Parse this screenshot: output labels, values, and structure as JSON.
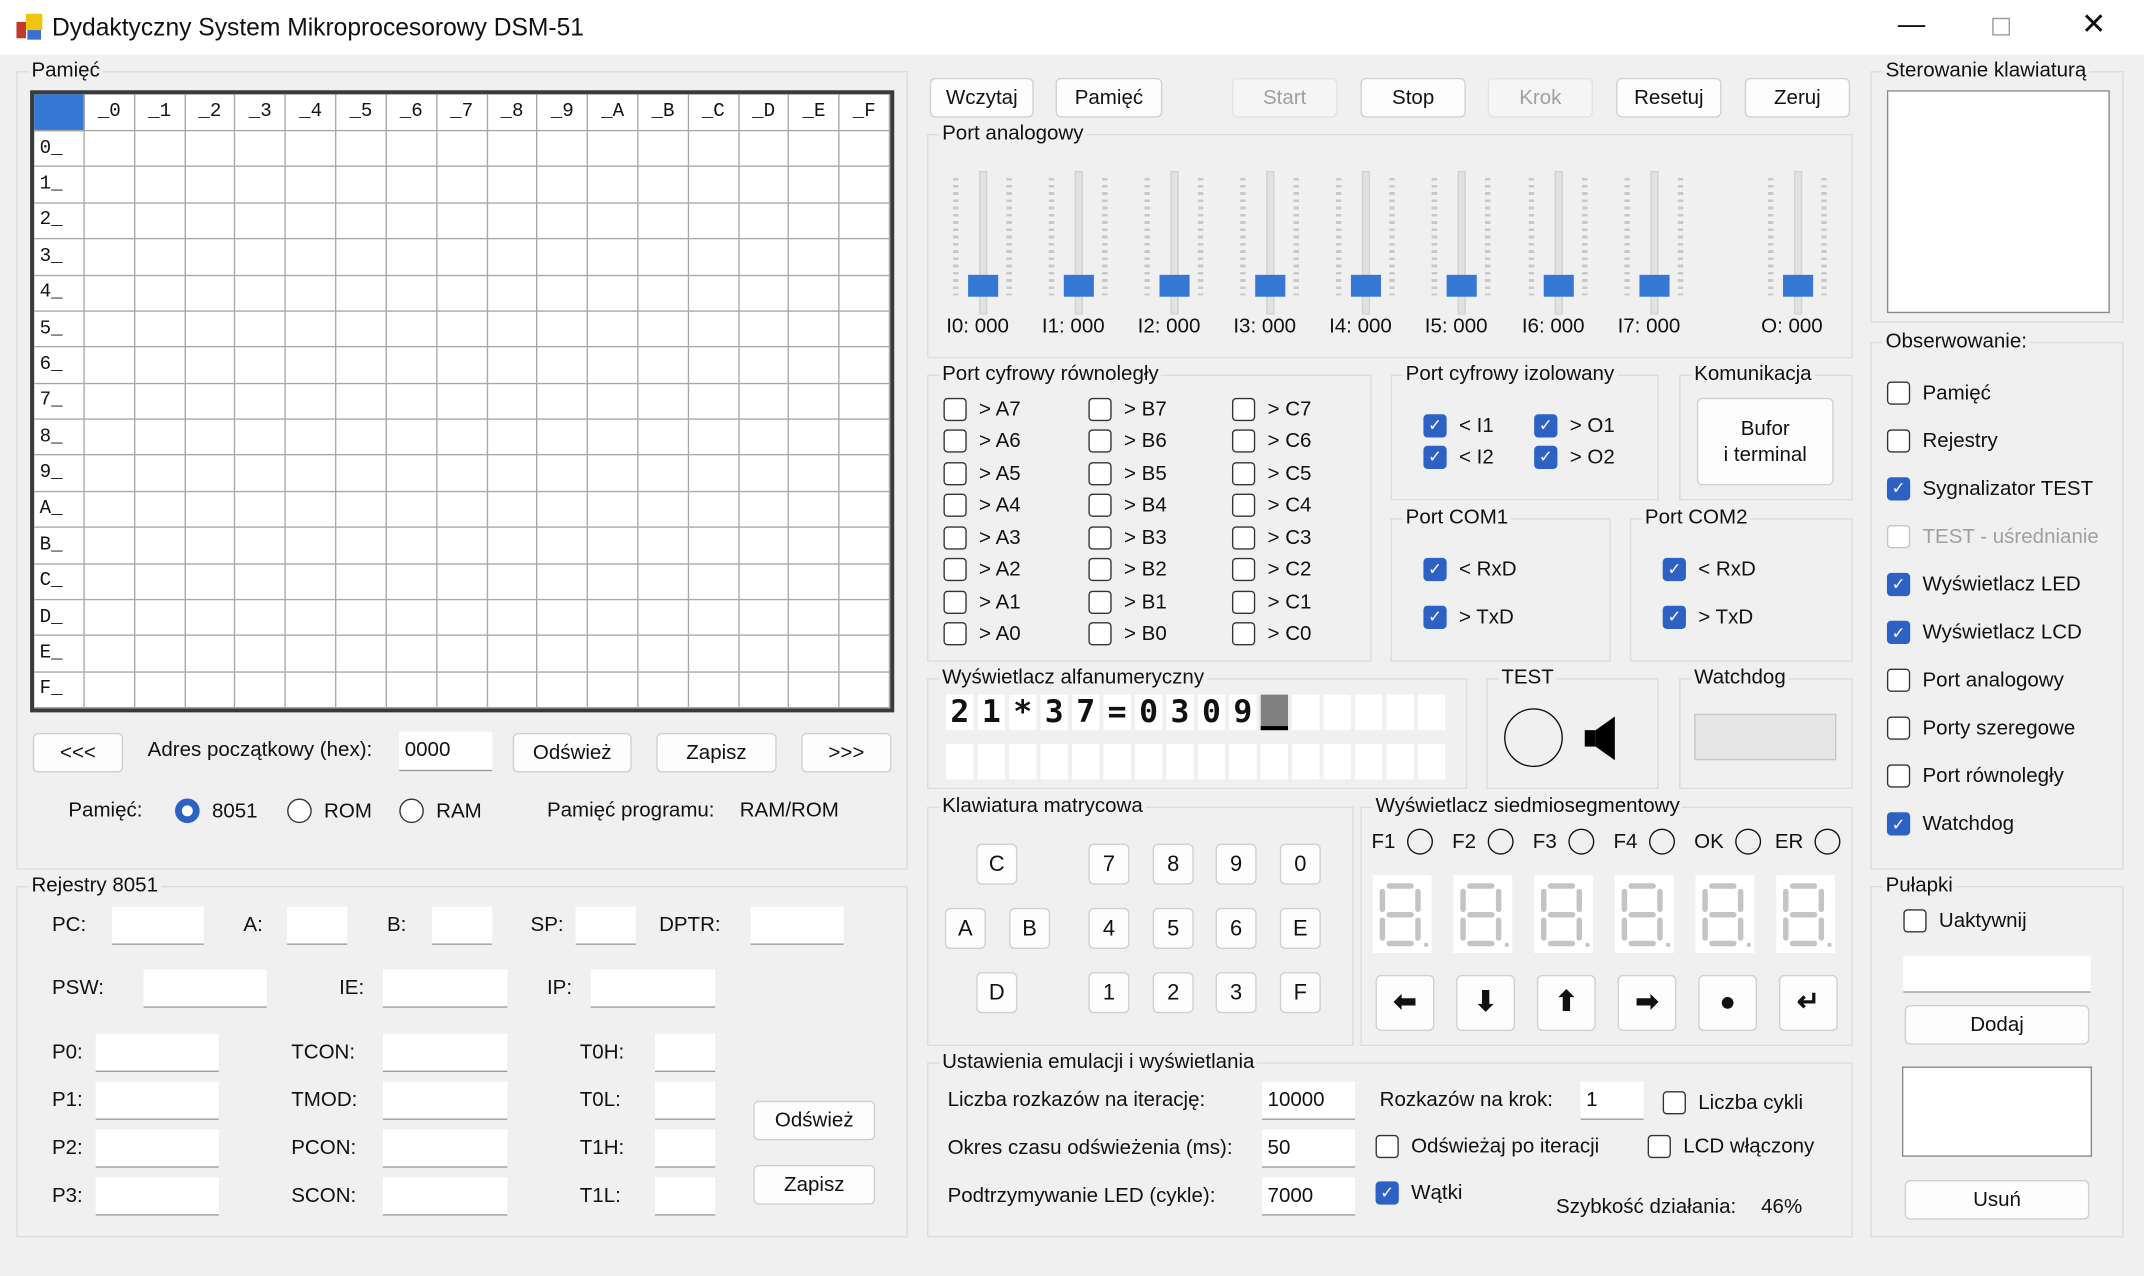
{
  "window": {
    "title": "Dydaktyczny System Mikroprocesorowy DSM-51",
    "controls": [
      {
        "icon": "minimize-icon"
      },
      {
        "icon": "maximize-icon"
      },
      {
        "icon": "close-icon"
      }
    ]
  },
  "memory": {
    "title": "Pamięć",
    "col_headers": [
      "_0",
      "_1",
      "_2",
      "_3",
      "_4",
      "_5",
      "_6",
      "_7",
      "_8",
      "_9",
      "_A",
      "_B",
      "_C",
      "_D",
      "_E",
      "_F"
    ],
    "row_headers": [
      "0_",
      "1_",
      "2_",
      "3_",
      "4_",
      "5_",
      "6_",
      "7_",
      "8_",
      "9_",
      "A_",
      "B_",
      "C_",
      "D_",
      "E_",
      "F_"
    ],
    "prev_label": "<<<",
    "addr_label": "Adres początkowy (hex):",
    "addr_value": "0000",
    "refresh_label": "Odśwież",
    "save_label": "Zapisz",
    "next_label": ">>>",
    "mem_label": "Pamięć:",
    "options": [
      {
        "label": "8051",
        "selected": true
      },
      {
        "label": "ROM",
        "selected": false
      },
      {
        "label": "RAM",
        "selected": false
      }
    ],
    "program_label": "Pamięć programu:",
    "program_value": "RAM/ROM"
  },
  "registers": {
    "title": "Rejestry 8051",
    "fields": [
      {
        "label": "PC:",
        "value": ""
      },
      {
        "label": "A:",
        "value": ""
      },
      {
        "label": "B:",
        "value": ""
      },
      {
        "label": "SP:",
        "value": ""
      },
      {
        "label": "DPTR:",
        "value": ""
      },
      {
        "label": "PSW:",
        "value": ""
      },
      {
        "label": "IE:",
        "value": ""
      },
      {
        "label": "IP:",
        "value": ""
      },
      {
        "label": "P0:",
        "value": ""
      },
      {
        "label": "TCON:",
        "value": ""
      },
      {
        "label": "T0H:",
        "value": ""
      },
      {
        "label": "P1:",
        "value": ""
      },
      {
        "label": "TMOD:",
        "value": ""
      },
      {
        "label": "T0L:",
        "value": ""
      },
      {
        "label": "P2:",
        "value": ""
      },
      {
        "label": "PCON:",
        "value": ""
      },
      {
        "label": "T1H:",
        "value": ""
      },
      {
        "label": "P3:",
        "value": ""
      },
      {
        "label": "SCON:",
        "value": ""
      },
      {
        "label": "T1L:",
        "value": ""
      }
    ],
    "refresh_label": "Odśwież",
    "save_label": "Zapisz"
  },
  "toolbar": {
    "buttons": [
      {
        "label": "Wczytaj",
        "enabled": true
      },
      {
        "label": "Pamięć",
        "enabled": true
      },
      {
        "label": "Start",
        "enabled": false
      },
      {
        "label": "Stop",
        "enabled": true
      },
      {
        "label": "Krok",
        "enabled": false
      },
      {
        "label": "Resetuj",
        "enabled": true
      },
      {
        "label": "Zeruj",
        "enabled": true
      }
    ]
  },
  "analog": {
    "title": "Port analogowy",
    "channels": [
      {
        "label": "I0: 000",
        "value": 0
      },
      {
        "label": "I1: 000",
        "value": 0
      },
      {
        "label": "I2: 000",
        "value": 0
      },
      {
        "label": "I3: 000",
        "value": 0
      },
      {
        "label": "I4: 000",
        "value": 0
      },
      {
        "label": "I5: 000",
        "value": 0
      },
      {
        "label": "I6: 000",
        "value": 0
      },
      {
        "label": "I7: 000",
        "value": 0
      },
      {
        "label": "O: 000",
        "value": 0
      }
    ]
  },
  "parallel": {
    "title": "Port cyfrowy równoległy",
    "items": [
      {
        "label": "> A7",
        "checked": false
      },
      {
        "label": "> A6",
        "checked": false
      },
      {
        "label": "> A5",
        "checked": false
      },
      {
        "label": "> A4",
        "checked": false
      },
      {
        "label": "> A3",
        "checked": false
      },
      {
        "label": "> A2",
        "checked": false
      },
      {
        "label": "> A1",
        "checked": false
      },
      {
        "label": "> A0",
        "checked": false
      },
      {
        "label": "> B7",
        "checked": false
      },
      {
        "label": "> B6",
        "checked": false
      },
      {
        "label": "> B5",
        "checked": false
      },
      {
        "label": "> B4",
        "checked": false
      },
      {
        "label": "> B3",
        "checked": false
      },
      {
        "label": "> B2",
        "checked": false
      },
      {
        "label": "> B1",
        "checked": false
      },
      {
        "label": "> B0",
        "checked": false
      },
      {
        "label": "> C7",
        "checked": false
      },
      {
        "label": "> C6",
        "checked": false
      },
      {
        "label": "> C5",
        "checked": false
      },
      {
        "label": "> C4",
        "checked": false
      },
      {
        "label": "> C3",
        "checked": false
      },
      {
        "label": "> C2",
        "checked": false
      },
      {
        "label": "> C1",
        "checked": false
      },
      {
        "label": "> C0",
        "checked": false
      }
    ]
  },
  "isolated": {
    "title": "Port cyfrowy izolowany",
    "items": [
      {
        "label": "< I1",
        "checked": true
      },
      {
        "label": "< I2",
        "checked": true
      },
      {
        "label": "> O1",
        "checked": true
      },
      {
        "label": "> O2",
        "checked": true
      }
    ]
  },
  "comm": {
    "title": "Komunikacja",
    "button_label": "Bufor\ni terminal"
  },
  "com1": {
    "title": "Port COM1",
    "items": [
      {
        "label": "< RxD",
        "checked": true
      },
      {
        "label": "> TxD",
        "checked": true
      }
    ]
  },
  "com2": {
    "title": "Port COM2",
    "items": [
      {
        "label": "< RxD",
        "checked": true
      },
      {
        "label": "> TxD",
        "checked": true
      }
    ]
  },
  "alnum": {
    "title": "Wyświetlacz alfanumeryczny",
    "row1": [
      "2",
      "1",
      "*",
      "3",
      "7",
      "=",
      "0",
      "3",
      "0",
      "9",
      "",
      "",
      "",
      "",
      "",
      ""
    ],
    "row2": [
      "",
      "",
      "",
      "",
      "",
      "",
      "",
      "",
      "",
      "",
      "",
      "",
      "",
      "",
      "",
      ""
    ],
    "cursor": {
      "row": 1,
      "col": 11
    }
  },
  "test": {
    "title": "TEST",
    "indicator_icon": "circle-icon",
    "speaker_icon": "speaker-icon"
  },
  "watchdog": {
    "title": "Watchdog"
  },
  "keypad": {
    "title": "Klawiatura matrycowa",
    "keys": [
      "C",
      "7",
      "8",
      "9",
      "0",
      "A",
      "B",
      "4",
      "5",
      "6",
      "E",
      "D",
      "1",
      "2",
      "3",
      "F"
    ]
  },
  "sevenseg": {
    "title": "Wyświetlacz siedmiosegmentowy",
    "leds": [
      {
        "label": "F1",
        "on": false
      },
      {
        "label": "F2",
        "on": false
      },
      {
        "label": "F3",
        "on": false
      },
      {
        "label": "F4",
        "on": false
      },
      {
        "label": "OK",
        "on": false
      },
      {
        "label": "ER",
        "on": false
      }
    ],
    "digits": [
      {
        "lit": false
      },
      {
        "lit": false
      },
      {
        "lit": false
      },
      {
        "lit": false
      },
      {
        "lit": false
      },
      {
        "lit": false
      }
    ],
    "buttons": [
      {
        "icon": "arrow-left-icon"
      },
      {
        "icon": "arrow-down-icon"
      },
      {
        "icon": "arrow-up-icon"
      },
      {
        "icon": "arrow-right-icon"
      },
      {
        "icon": "dot-icon"
      },
      {
        "icon": "enter-icon"
      }
    ]
  },
  "settings": {
    "title": "Ustawienia emulacji i wyświetlania",
    "iter_label": "Liczba rozkazów na iterację:",
    "iter_value": "10000",
    "refresh_label": "Okres czasu odświeżenia (ms):",
    "refresh_value": "50",
    "led_label": "Podtrzymywanie LED (cykle):",
    "led_value": "7000",
    "step_label": "Rozkazów na krok:",
    "step_value": "1",
    "checks": [
      {
        "label": "Liczba cykli",
        "checked": false
      },
      {
        "label": "Odświeżaj po iteracji",
        "checked": false
      },
      {
        "label": "LCD włączony",
        "checked": false
      },
      {
        "label": "Wątki",
        "checked": true
      }
    ],
    "speed_label": "Szybkość działania:",
    "speed_value": "46%"
  },
  "keyboard_control": {
    "title": "Sterowanie klawiaturą"
  },
  "observe": {
    "title": "Obserwowanie:",
    "items": [
      {
        "label": "Pamięć",
        "checked": false,
        "enabled": true
      },
      {
        "label": "Rejestry",
        "checked": false,
        "enabled": true
      },
      {
        "label": "Sygnalizator TEST",
        "checked": true,
        "enabled": true
      },
      {
        "label": "TEST - uśrednianie",
        "checked": false,
        "enabled": false
      },
      {
        "label": "Wyświetlacz LED",
        "checked": true,
        "enabled": true
      },
      {
        "label": "Wyświetlacz LCD",
        "checked": true,
        "enabled": true
      },
      {
        "label": "Port analogowy",
        "checked": false,
        "enabled": true
      },
      {
        "label": "Porty szeregowe",
        "checked": false,
        "enabled": true
      },
      {
        "label": "Port równoległy",
        "checked": false,
        "enabled": true
      },
      {
        "label": "Watchdog",
        "checked": true,
        "enabled": true
      }
    ]
  },
  "traps": {
    "title": "Pułapki",
    "enable_label": "Uaktywnij",
    "enable_checked": false,
    "add_label": "Dodaj",
    "remove_label": "Usuń",
    "address_value": ""
  },
  "colors": {
    "accent": "#3478d4",
    "check": "#2d62c4",
    "background": "#f0f0f0",
    "segment_off": "#c4c4c4"
  }
}
